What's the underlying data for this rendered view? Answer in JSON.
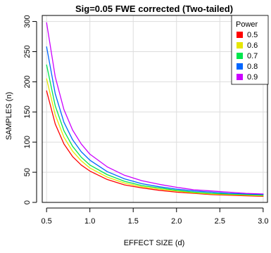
{
  "chart_data": {
    "type": "line",
    "title": "Sig=0.05 FWE corrected (Two-tailed)",
    "xlabel": "EFFECT SIZE (d)",
    "ylabel": "SAMPLES (n)",
    "xlim": [
      0.45,
      3.05
    ],
    "ylim": [
      0,
      310
    ],
    "xticks": [
      0.5,
      1.0,
      1.5,
      2.0,
      2.5,
      3.0
    ],
    "xtick_labels": [
      "0.5",
      "1.0",
      "1.5",
      "2.0",
      "2.5",
      "3.0"
    ],
    "yticks": [
      0,
      50,
      100,
      150,
      200,
      250,
      300
    ],
    "ytick_labels": [
      "0",
      "50",
      "100",
      "150",
      "200",
      "250",
      "300"
    ],
    "grid": true,
    "legend": {
      "title": "Power",
      "placement": "top-right"
    },
    "x": [
      0.5,
      0.6,
      0.7,
      0.8,
      0.9,
      1.0,
      1.2,
      1.4,
      1.6,
      1.8,
      2.0,
      2.2,
      2.4,
      2.6,
      2.8,
      3.0
    ],
    "series": [
      {
        "name": "0.5",
        "color": "#ff0000",
        "values": [
          185,
          130,
          97,
          76,
          62,
          52,
          38,
          29,
          24,
          20,
          17,
          15,
          13,
          12,
          11,
          10
        ]
      },
      {
        "name": "0.6",
        "color": "#e6e600",
        "values": [
          205,
          145,
          108,
          85,
          69,
          57,
          42,
          32,
          26,
          22,
          19,
          16,
          14,
          13,
          12,
          11
        ]
      },
      {
        "name": "0.7",
        "color": "#00e64d",
        "values": [
          228,
          160,
          119,
          93,
          75,
          62,
          46,
          35,
          28,
          24,
          20,
          17,
          15,
          14,
          13,
          12
        ]
      },
      {
        "name": "0.8",
        "color": "#0066ff",
        "values": [
          258,
          180,
          133,
          104,
          84,
          70,
          51,
          39,
          31,
          26,
          22,
          19,
          17,
          15,
          14,
          13
        ]
      },
      {
        "name": "0.9",
        "color": "#cc00ff",
        "values": [
          298,
          208,
          154,
          120,
          97,
          80,
          59,
          45,
          36,
          30,
          25,
          21,
          19,
          17,
          15,
          14
        ]
      }
    ]
  }
}
